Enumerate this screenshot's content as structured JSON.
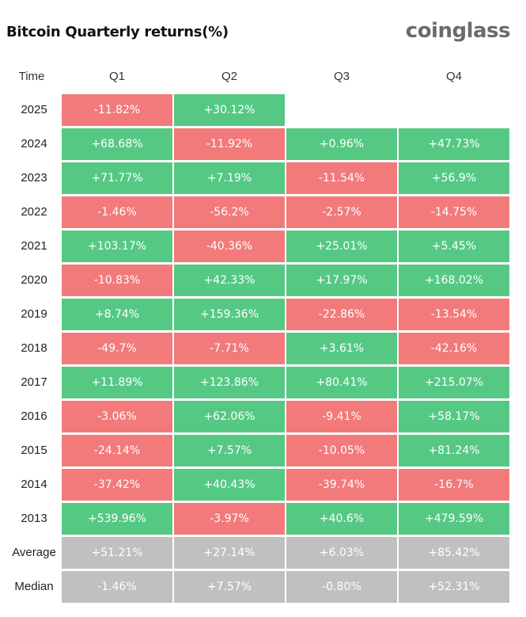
{
  "title": "Bitcoin Quarterly returns(%)",
  "brand": "coinglass",
  "colors": {
    "positive": "#55c984",
    "negative": "#f37a7a",
    "summary": "#c0c0c0"
  },
  "chart_data": {
    "type": "table",
    "title": "Bitcoin Quarterly returns(%)",
    "header": [
      "Time",
      "Q1",
      "Q2",
      "Q3",
      "Q4"
    ],
    "rows": [
      {
        "label": "2025",
        "values": [
          "-11.82%",
          "+30.12%",
          null,
          null
        ]
      },
      {
        "label": "2024",
        "values": [
          "+68.68%",
          "-11.92%",
          "+0.96%",
          "+47.73%"
        ]
      },
      {
        "label": "2023",
        "values": [
          "+71.77%",
          "+7.19%",
          "-11.54%",
          "+56.9%"
        ]
      },
      {
        "label": "2022",
        "values": [
          "-1.46%",
          "-56.2%",
          "-2.57%",
          "-14.75%"
        ]
      },
      {
        "label": "2021",
        "values": [
          "+103.17%",
          "-40.36%",
          "+25.01%",
          "+5.45%"
        ]
      },
      {
        "label": "2020",
        "values": [
          "-10.83%",
          "+42.33%",
          "+17.97%",
          "+168.02%"
        ]
      },
      {
        "label": "2019",
        "values": [
          "+8.74%",
          "+159.36%",
          "-22.86%",
          "-13.54%"
        ]
      },
      {
        "label": "2018",
        "values": [
          "-49.7%",
          "-7.71%",
          "+3.61%",
          "-42.16%"
        ]
      },
      {
        "label": "2017",
        "values": [
          "+11.89%",
          "+123.86%",
          "+80.41%",
          "+215.07%"
        ]
      },
      {
        "label": "2016",
        "values": [
          "-3.06%",
          "+62.06%",
          "-9.41%",
          "+58.17%"
        ]
      },
      {
        "label": "2015",
        "values": [
          "-24.14%",
          "+7.57%",
          "-10.05%",
          "+81.24%"
        ]
      },
      {
        "label": "2014",
        "values": [
          "-37.42%",
          "+40.43%",
          "-39.74%",
          "-16.7%"
        ]
      },
      {
        "label": "2013",
        "values": [
          "+539.96%",
          "-3.97%",
          "+40.6%",
          "+479.59%"
        ]
      }
    ],
    "summary_rows": [
      {
        "label": "Average",
        "values": [
          "+51.21%",
          "+27.14%",
          "+6.03%",
          "+85.42%"
        ]
      },
      {
        "label": "Median",
        "values": [
          "-1.46%",
          "+7.57%",
          "-0.80%",
          "+52.31%"
        ]
      }
    ]
  }
}
